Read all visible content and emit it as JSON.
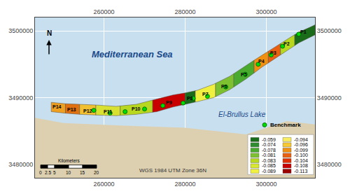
{
  "chart_data": {
    "type": "map",
    "xlim": [
      243000,
      312000
    ],
    "ylim": [
      3478000,
      3502000
    ],
    "xticks": [
      260000,
      280000,
      300000
    ],
    "yticks": [
      3480000,
      3490000,
      3500000
    ],
    "grid": true,
    "sea_color": "#c8dff0",
    "land": {
      "color": "#ddd0b0",
      "points": [
        [
          243000,
          3478000
        ],
        [
          312000,
          3478000
        ],
        [
          312000,
          3486000
        ],
        [
          305000,
          3486500
        ],
        [
          295000,
          3484500
        ],
        [
          280000,
          3485500
        ],
        [
          265000,
          3485800
        ],
        [
          250000,
          3486200
        ],
        [
          243000,
          3487000
        ]
      ]
    },
    "strip": {
      "color": "#c8b890",
      "upper": [
        [
          247000,
          3489300
        ],
        [
          250000,
          3489100
        ],
        [
          254000,
          3489000
        ],
        [
          258000,
          3488900
        ],
        [
          263000,
          3488700
        ],
        [
          268000,
          3489000
        ],
        [
          273000,
          3489800
        ],
        [
          277000,
          3490400
        ],
        [
          280000,
          3490700
        ],
        [
          283000,
          3491100
        ],
        [
          287000,
          3492000
        ],
        [
          291000,
          3493200
        ],
        [
          295000,
          3494800
        ],
        [
          299000,
          3496400
        ],
        [
          302000,
          3497500
        ],
        [
          305000,
          3498700
        ],
        [
          308000,
          3499800
        ],
        [
          311000,
          3500600
        ],
        [
          312000,
          3500900
        ]
      ],
      "lower": [
        [
          247000,
          3487900
        ],
        [
          250000,
          3487700
        ],
        [
          254000,
          3487500
        ],
        [
          258000,
          3487400
        ],
        [
          263000,
          3487300
        ],
        [
          268000,
          3487500
        ],
        [
          273000,
          3487900
        ],
        [
          277000,
          3488600
        ],
        [
          280000,
          3489000
        ],
        [
          283000,
          3489400
        ],
        [
          287000,
          3490000
        ],
        [
          291000,
          3491200
        ],
        [
          295000,
          3492800
        ],
        [
          299000,
          3494600
        ],
        [
          302000,
          3495800
        ],
        [
          305000,
          3497000
        ],
        [
          308000,
          3498200
        ],
        [
          311000,
          3499100
        ],
        [
          312000,
          3499400
        ]
      ]
    },
    "regions": [
      {
        "name": "P14",
        "x_start": 247000,
        "x_end": 250500,
        "color": "#f0a020",
        "label_x": 248500,
        "label_y": 3488600
      },
      {
        "name": "P13",
        "x_start": 250500,
        "x_end": 254000,
        "color": "#e07010",
        "label_x": 252000,
        "label_y": 3488200
      },
      {
        "name": "P12",
        "x_start": 254000,
        "x_end": 258000,
        "color": "#f0c030",
        "label_x": 256000,
        "label_y": 3488000
      },
      {
        "name": "P11",
        "x_start": 258000,
        "x_end": 264000,
        "color": "#d8e030",
        "label_x": 261000,
        "label_y": 3487900
      },
      {
        "name": "P10",
        "x_start": 264000,
        "x_end": 272000,
        "color": "#b8d820",
        "label_x": 268000,
        "label_y": 3488300
      },
      {
        "name": "P9",
        "x_start": 272000,
        "x_end": 280000,
        "color": "#c80000",
        "label_x": 276000,
        "label_y": 3489300
      },
      {
        "name": "P8",
        "x_start": 280000,
        "x_end": 282500,
        "color": "#1a6b1a",
        "label_x": 281200,
        "label_y": 3489900
      },
      {
        "name": "P7",
        "x_start": 282500,
        "x_end": 287500,
        "color": "#f0f040",
        "label_x": 285000,
        "label_y": 3490500
      },
      {
        "name": "P6",
        "x_start": 287500,
        "x_end": 292000,
        "color": "#7dc030",
        "label_x": 289700,
        "label_y": 3491700
      },
      {
        "name": "P5",
        "x_start": 292000,
        "x_end": 297000,
        "color": "#4aaa30",
        "label_x": 294500,
        "label_y": 3493500
      },
      {
        "name": "P4",
        "x_start": 297000,
        "x_end": 300500,
        "color": "#f09010",
        "label_x": 298800,
        "label_y": 3495400
      },
      {
        "name": "P3",
        "x_start": 300500,
        "x_end": 303500,
        "color": "#e86010",
        "label_x": 301800,
        "label_y": 3496700
      },
      {
        "name": "P2",
        "x_start": 303500,
        "x_end": 307000,
        "color": "#b8d820",
        "label_x": 305000,
        "label_y": 3498100
      },
      {
        "name": "P1",
        "x_start": 307000,
        "x_end": 312000,
        "color": "#1a6b1a",
        "label_x": 309200,
        "label_y": 3499800
      }
    ],
    "series": [
      {
        "name": "Benchmark",
        "type": "scatter",
        "color": "#00dd00",
        "x": [
          308000,
          304000,
          301200,
          298000,
          294800,
          290000,
          285500,
          282000,
          279500,
          274500,
          270000,
          265200,
          261500,
          257500
        ],
        "y": [
          3499500,
          3497700,
          3496400,
          3495000,
          3493500,
          3491600,
          3490200,
          3489900,
          3489200,
          3488800,
          3488300,
          3487900,
          3487700,
          3488100
        ]
      }
    ],
    "annotations": [
      {
        "text": "Mediterranean Sea",
        "x": 267000,
        "y": 3496500,
        "color": "#1a4a8a",
        "font_style": "bold italic"
      },
      {
        "text": "El-Brullus Lake",
        "x": 294000,
        "y": 3487500,
        "color": "#1a4a8a",
        "font_style": "italic"
      },
      {
        "text": "WGS 1984 UTM Zone 36N",
        "x": 277000,
        "y": 3479100,
        "color": "#333333",
        "font_style": "normal"
      }
    ],
    "north_label": "N",
    "scale_bar": {
      "label": "Kilometers",
      "values": [
        0,
        2.5,
        5,
        10,
        15,
        20
      ]
    },
    "legend_classes": [
      {
        "label": "-0.059",
        "color": "#1a6b1a"
      },
      {
        "label": "-0.074",
        "color": "#2d8c2d"
      },
      {
        "label": "-0.078",
        "color": "#4aaa30"
      },
      {
        "label": "-0.081",
        "color": "#7dc030"
      },
      {
        "label": "-0.083",
        "color": "#b8d820"
      },
      {
        "label": "-0.085",
        "color": "#d8e830"
      },
      {
        "label": "-0.089",
        "color": "#f0f040"
      },
      {
        "label": "-0.094",
        "color": "#f8ec60"
      },
      {
        "label": "-0.096",
        "color": "#f8c830"
      },
      {
        "label": "-0.099",
        "color": "#f09010"
      },
      {
        "label": "-0.100",
        "color": "#e86010"
      },
      {
        "label": "-0.104",
        "color": "#e03000"
      },
      {
        "label": "-0.108",
        "color": "#c80000"
      },
      {
        "label": "-0.113",
        "color": "#9a0000"
      }
    ]
  }
}
